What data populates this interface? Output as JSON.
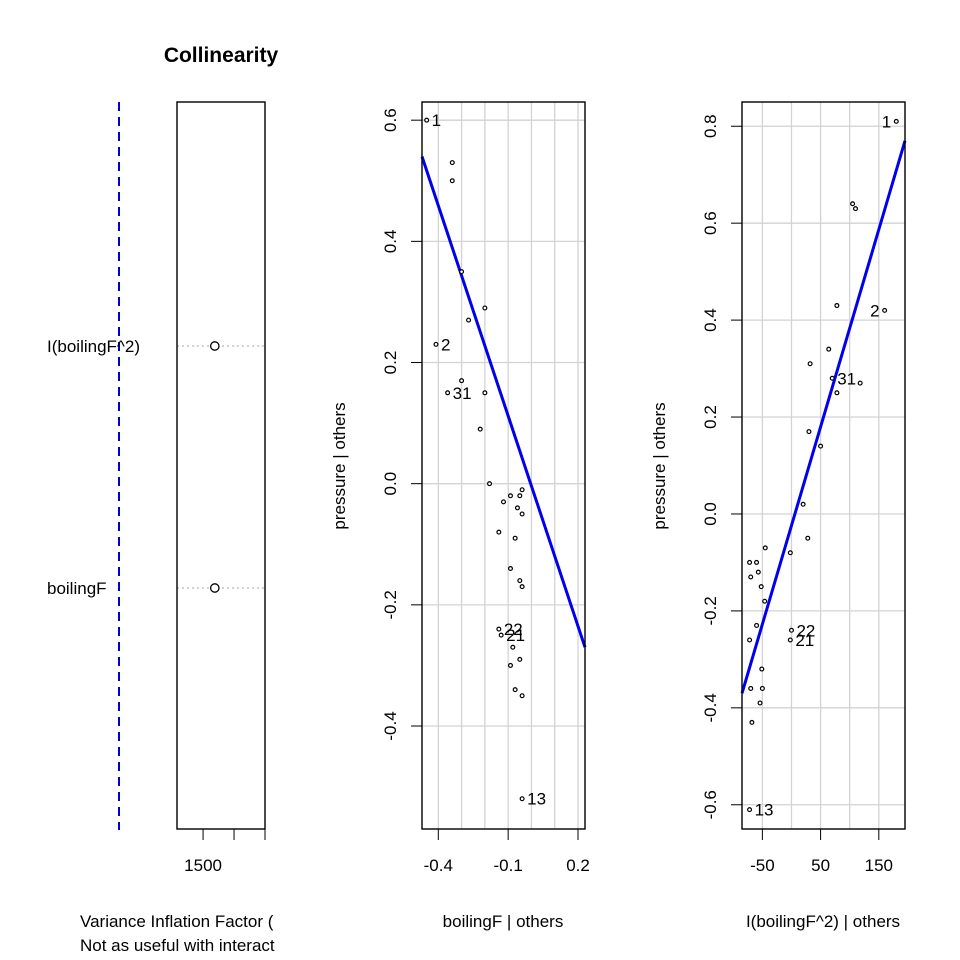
{
  "chart_data": [
    {
      "type": "dotchart",
      "title": "Collinearity",
      "xlabel": "Variance Inflation Factor (",
      "xlabel2": "Not as useful with interact",
      "categories": [
        "I(boilingF^2)",
        "boilingF"
      ],
      "values": [
        1536,
        1536
      ],
      "xlim": [
        1420,
        1690
      ],
      "xticks": [
        1500,
        "",
        ""
      ],
      "reference_line_color": "#0000cc"
    },
    {
      "type": "scatter",
      "title": "",
      "xlabel": "boilingF | others",
      "ylabel": "pressure  | others",
      "xlim": [
        -0.47,
        0.23
      ],
      "ylim": [
        -0.57,
        0.63
      ],
      "xticks": [
        -0.4,
        -0.1,
        0.2
      ],
      "xtick_labels": [
        "-0.4",
        "-0.1",
        "0.2"
      ],
      "yticks": [
        -0.4,
        -0.2,
        0.0,
        0.2,
        0.4,
        0.6
      ],
      "ytick_labels": [
        "-0.4",
        "-0.2",
        "0.0",
        "0.2",
        "0.4",
        "0.6"
      ],
      "xgrid": [
        -0.4,
        -0.3,
        -0.2,
        -0.1,
        0.0,
        0.1,
        0.2
      ],
      "ygrid": [
        -0.4,
        -0.2,
        0.0,
        0.2,
        0.4,
        0.6
      ],
      "fit_line": {
        "x": [
          -0.47,
          0.23
        ],
        "y": [
          0.54,
          -0.27
        ],
        "color": "#0000ee"
      },
      "points": [
        {
          "x": -0.45,
          "y": 0.6
        },
        {
          "x": -0.41,
          "y": 0.23
        },
        {
          "x": -0.34,
          "y": 0.53
        },
        {
          "x": -0.34,
          "y": 0.5
        },
        {
          "x": -0.3,
          "y": 0.35
        },
        {
          "x": -0.27,
          "y": 0.27
        },
        {
          "x": -0.2,
          "y": 0.29
        },
        {
          "x": -0.2,
          "y": 0.15
        },
        {
          "x": -0.3,
          "y": 0.17
        },
        {
          "x": -0.36,
          "y": 0.15
        },
        {
          "x": -0.22,
          "y": 0.09
        },
        {
          "x": -0.18,
          "y": 0.0
        },
        {
          "x": -0.14,
          "y": -0.08
        },
        {
          "x": -0.12,
          "y": -0.03
        },
        {
          "x": -0.09,
          "y": -0.02
        },
        {
          "x": -0.07,
          "y": -0.09
        },
        {
          "x": -0.06,
          "y": -0.04
        },
        {
          "x": -0.05,
          "y": -0.02
        },
        {
          "x": -0.04,
          "y": -0.05
        },
        {
          "x": -0.04,
          "y": -0.01
        },
        {
          "x": -0.09,
          "y": -0.14
        },
        {
          "x": -0.05,
          "y": -0.16
        },
        {
          "x": -0.04,
          "y": -0.17
        },
        {
          "x": -0.14,
          "y": -0.24
        },
        {
          "x": -0.13,
          "y": -0.25
        },
        {
          "x": -0.08,
          "y": -0.27
        },
        {
          "x": -0.09,
          "y": -0.3
        },
        {
          "x": -0.07,
          "y": -0.34
        },
        {
          "x": -0.05,
          "y": -0.29
        },
        {
          "x": -0.04,
          "y": -0.35
        },
        {
          "x": -0.04,
          "y": -0.52
        }
      ],
      "point_labels": [
        {
          "text": "1",
          "x": -0.45,
          "y": 0.6
        },
        {
          "text": "2",
          "x": -0.41,
          "y": 0.23
        },
        {
          "text": "31",
          "x": -0.36,
          "y": 0.15
        },
        {
          "text": "22",
          "x": -0.14,
          "y": -0.24
        },
        {
          "text": "21",
          "x": -0.13,
          "y": -0.25
        },
        {
          "text": "13",
          "x": -0.04,
          "y": -0.52
        }
      ]
    },
    {
      "type": "scatter",
      "title": "",
      "xlabel": "I(boilingF^2) | others",
      "ylabel": "pressure  | others",
      "xlim": [
        -85,
        195
      ],
      "ylim": [
        -0.65,
        0.85
      ],
      "xticks": [
        -50,
        50,
        150
      ],
      "xtick_labels": [
        "-50",
        "50",
        "150"
      ],
      "yticks": [
        -0.6,
        -0.4,
        -0.2,
        0.0,
        0.2,
        0.4,
        0.6,
        0.8
      ],
      "ytick_labels": [
        "-0.6",
        "-0.4",
        "-0.2",
        "0.0",
        "0.2",
        "0.4",
        "0.6",
        "0.8"
      ],
      "xgrid": [
        -50,
        0,
        50,
        100,
        150
      ],
      "ygrid": [
        -0.6,
        -0.4,
        -0.2,
        0.0,
        0.2,
        0.4,
        0.6,
        0.8
      ],
      "fit_line": {
        "x": [
          -85,
          195
        ],
        "y": [
          -0.37,
          0.77
        ],
        "color": "#0000ee"
      },
      "points": [
        {
          "x": 180,
          "y": 0.81
        },
        {
          "x": 105,
          "y": 0.64
        },
        {
          "x": 110,
          "y": 0.63
        },
        {
          "x": 160,
          "y": 0.42
        },
        {
          "x": 78,
          "y": 0.43
        },
        {
          "x": 118,
          "y": 0.27
        },
        {
          "x": 64,
          "y": 0.34
        },
        {
          "x": 78,
          "y": 0.25
        },
        {
          "x": 32,
          "y": 0.31
        },
        {
          "x": 70,
          "y": 0.28
        },
        {
          "x": 30,
          "y": 0.17
        },
        {
          "x": 50,
          "y": 0.14
        },
        {
          "x": 20,
          "y": 0.02
        },
        {
          "x": 28,
          "y": -0.05
        },
        {
          "x": -45,
          "y": -0.07
        },
        {
          "x": -2,
          "y": -0.08
        },
        {
          "x": -72,
          "y": -0.1
        },
        {
          "x": -60,
          "y": -0.1
        },
        {
          "x": -70,
          "y": -0.13
        },
        {
          "x": -57,
          "y": -0.12
        },
        {
          "x": -52,
          "y": -0.15
        },
        {
          "x": -46,
          "y": -0.18
        },
        {
          "x": -60,
          "y": -0.23
        },
        {
          "x": -72,
          "y": -0.26
        },
        {
          "x": -2,
          "y": -0.26
        },
        {
          "x": 0,
          "y": -0.24
        },
        {
          "x": -51,
          "y": -0.32
        },
        {
          "x": -70,
          "y": -0.36
        },
        {
          "x": -50,
          "y": -0.36
        },
        {
          "x": -54,
          "y": -0.39
        },
        {
          "x": -68,
          "y": -0.43
        },
        {
          "x": -72,
          "y": -0.61
        }
      ],
      "point_labels": [
        {
          "text": "1",
          "x": 180,
          "y": 0.81
        },
        {
          "text": "2",
          "x": 160,
          "y": 0.42
        },
        {
          "text": "31",
          "x": 70,
          "y": 0.28
        },
        {
          "text": "22",
          "x": 0,
          "y": -0.24
        },
        {
          "text": "21",
          "x": -2,
          "y": -0.26
        },
        {
          "text": "13",
          "x": -72,
          "y": -0.61
        }
      ]
    }
  ]
}
